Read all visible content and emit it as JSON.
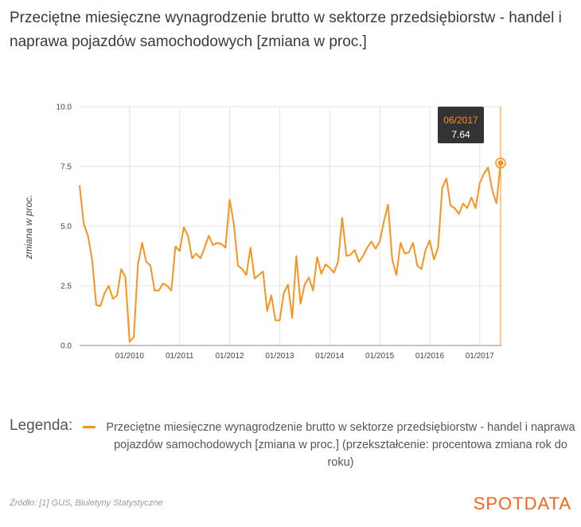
{
  "title": "Przeciętne miesięczne wynagrodzenie brutto w sektorze przedsiębiorstw - handel i naprawa pojazdów samochodowych [zmiana w proc.]",
  "legend": {
    "heading": "Legenda:",
    "entry": "Przeciętne miesięczne wynagrodzenie brutto w sektorze przedsiębiorstw - handel i naprawa pojazdów samochodowych [zmiana w proc.] (przekształcenie: procentowa zmiana rok do roku)"
  },
  "source": "Źródło: [1] GUS, Biuletyny Statystyczne",
  "brand": "SPOTDATA",
  "colors": {
    "series": "#f7931e",
    "brand": "#f0651a",
    "tooltip_bg": "#333333"
  },
  "chart_data": {
    "type": "line",
    "title": "",
    "xlabel": "",
    "ylabel": "zmiana w proc.",
    "ylim": [
      0,
      10
    ],
    "yticks": [
      "0.0",
      "2.5",
      "5.0",
      "7.5",
      "10.0"
    ],
    "xticks": [
      "01/2010",
      "01/2011",
      "01/2012",
      "01/2013",
      "01/2014",
      "01/2015",
      "01/2016",
      "01/2017"
    ],
    "x_start": "01/2009",
    "x_end": "06/2017",
    "grid": true,
    "series": [
      {
        "name": "Przeciętne miesięczne wynagrodzenie brutto w sektorze przedsiębiorstw - handel i naprawa pojazdów samochodowych [zmiana w proc.]",
        "values": [
          6.7,
          5.1,
          4.6,
          3.6,
          1.7,
          1.65,
          2.2,
          2.5,
          1.95,
          2.1,
          3.2,
          2.85,
          0.15,
          0.35,
          3.4,
          4.3,
          3.5,
          3.35,
          2.3,
          2.3,
          2.6,
          2.5,
          2.3,
          4.15,
          3.95,
          4.95,
          4.6,
          3.65,
          3.85,
          3.65,
          4.1,
          4.6,
          4.2,
          4.3,
          4.25,
          4.1,
          6.1,
          5.1,
          3.35,
          3.2,
          2.95,
          4.1,
          2.8,
          2.95,
          3.1,
          1.45,
          2.1,
          1.05,
          1.05,
          2.2,
          2.55,
          1.15,
          3.75,
          1.75,
          2.55,
          2.85,
          2.3,
          3.7,
          3.0,
          3.4,
          3.25,
          3.05,
          3.5,
          5.35,
          3.75,
          3.8,
          4.0,
          3.5,
          3.75,
          4.1,
          4.35,
          4.05,
          4.35,
          5.2,
          5.9,
          3.6,
          2.95,
          4.3,
          3.85,
          3.9,
          4.3,
          3.35,
          3.2,
          4.0,
          4.4,
          3.6,
          4.1,
          6.6,
          7.0,
          5.85,
          5.75,
          5.5,
          5.95,
          5.75,
          6.2,
          5.75,
          6.8,
          7.2,
          7.45,
          6.5,
          5.95,
          7.64
        ]
      }
    ],
    "highlight": {
      "label": "06/2017",
      "value": "7.64"
    }
  }
}
